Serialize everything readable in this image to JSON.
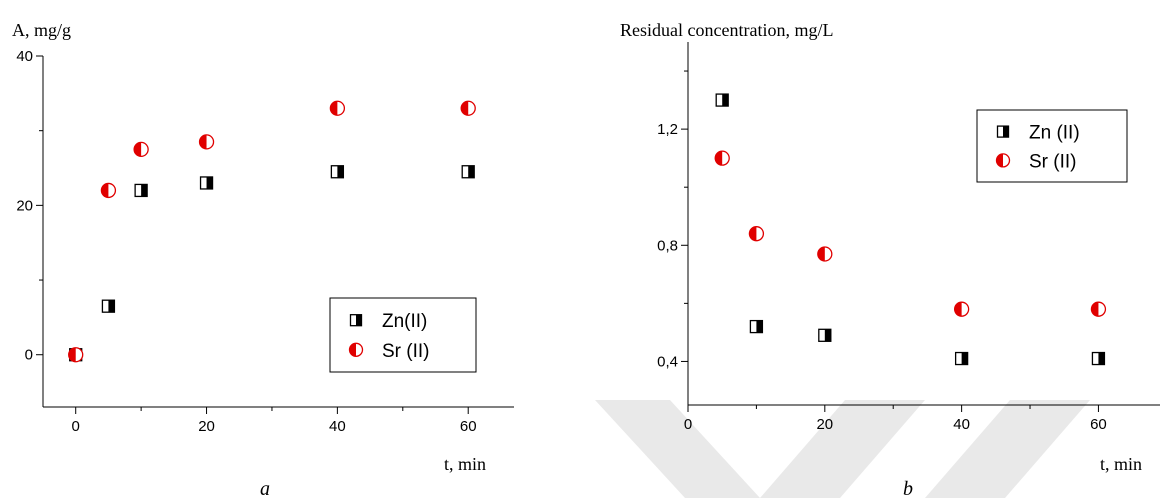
{
  "colors": {
    "zn_marker": "#000000",
    "sr_marker": "#e00000",
    "axis": "#000000",
    "watermark": "#e6e6e6"
  },
  "chart_data": [
    {
      "type": "scatter",
      "ylabel": "A, mg/g",
      "xlabel": "t, min",
      "caption": "a",
      "xlim": [
        -5,
        67
      ],
      "ylim": [
        -7,
        40
      ],
      "x_ticks": [
        0,
        20,
        40,
        60
      ],
      "x_tick_labels": [
        "0",
        "20",
        "40",
        "60"
      ],
      "y_ticks": [
        0,
        20,
        40
      ],
      "y_tick_labels": [
        "0",
        "20",
        "40"
      ],
      "legend_position": "bottom-right",
      "series": [
        {
          "name": "Zn(II)",
          "marker": "half-filled square",
          "x": [
            0,
            5,
            10,
            20,
            40,
            60
          ],
          "y": [
            0,
            6.5,
            22,
            23,
            24.5,
            24.5
          ]
        },
        {
          "name": "Sr (II)",
          "marker": "half-filled circle",
          "x": [
            0,
            5,
            10,
            20,
            40,
            60
          ],
          "y": [
            0,
            22,
            27.5,
            28.5,
            33,
            33
          ]
        }
      ]
    },
    {
      "type": "scatter",
      "ylabel": "Residual concentration, mg/L",
      "xlabel": "t, min",
      "caption": "b",
      "xlim": [
        0,
        69
      ],
      "ylim": [
        0.25,
        1.5
      ],
      "x_ticks": [
        0,
        20,
        40,
        60
      ],
      "x_tick_labels": [
        "0",
        "20",
        "40",
        "60"
      ],
      "y_ticks": [
        0.4,
        0.8,
        1.2
      ],
      "y_tick_labels": [
        "0,4",
        "0,8",
        "1,2"
      ],
      "legend_position": "top-right",
      "series": [
        {
          "name": "Zn (II)",
          "marker": "half-filled square",
          "x": [
            5,
            10,
            20,
            40,
            60
          ],
          "y": [
            1.3,
            0.52,
            0.49,
            0.41,
            0.41
          ]
        },
        {
          "name": "Sr (II)",
          "marker": "half-filled circle",
          "x": [
            5,
            10,
            20,
            40,
            60
          ],
          "y": [
            1.1,
            0.84,
            0.77,
            0.58,
            0.58
          ]
        }
      ]
    }
  ]
}
